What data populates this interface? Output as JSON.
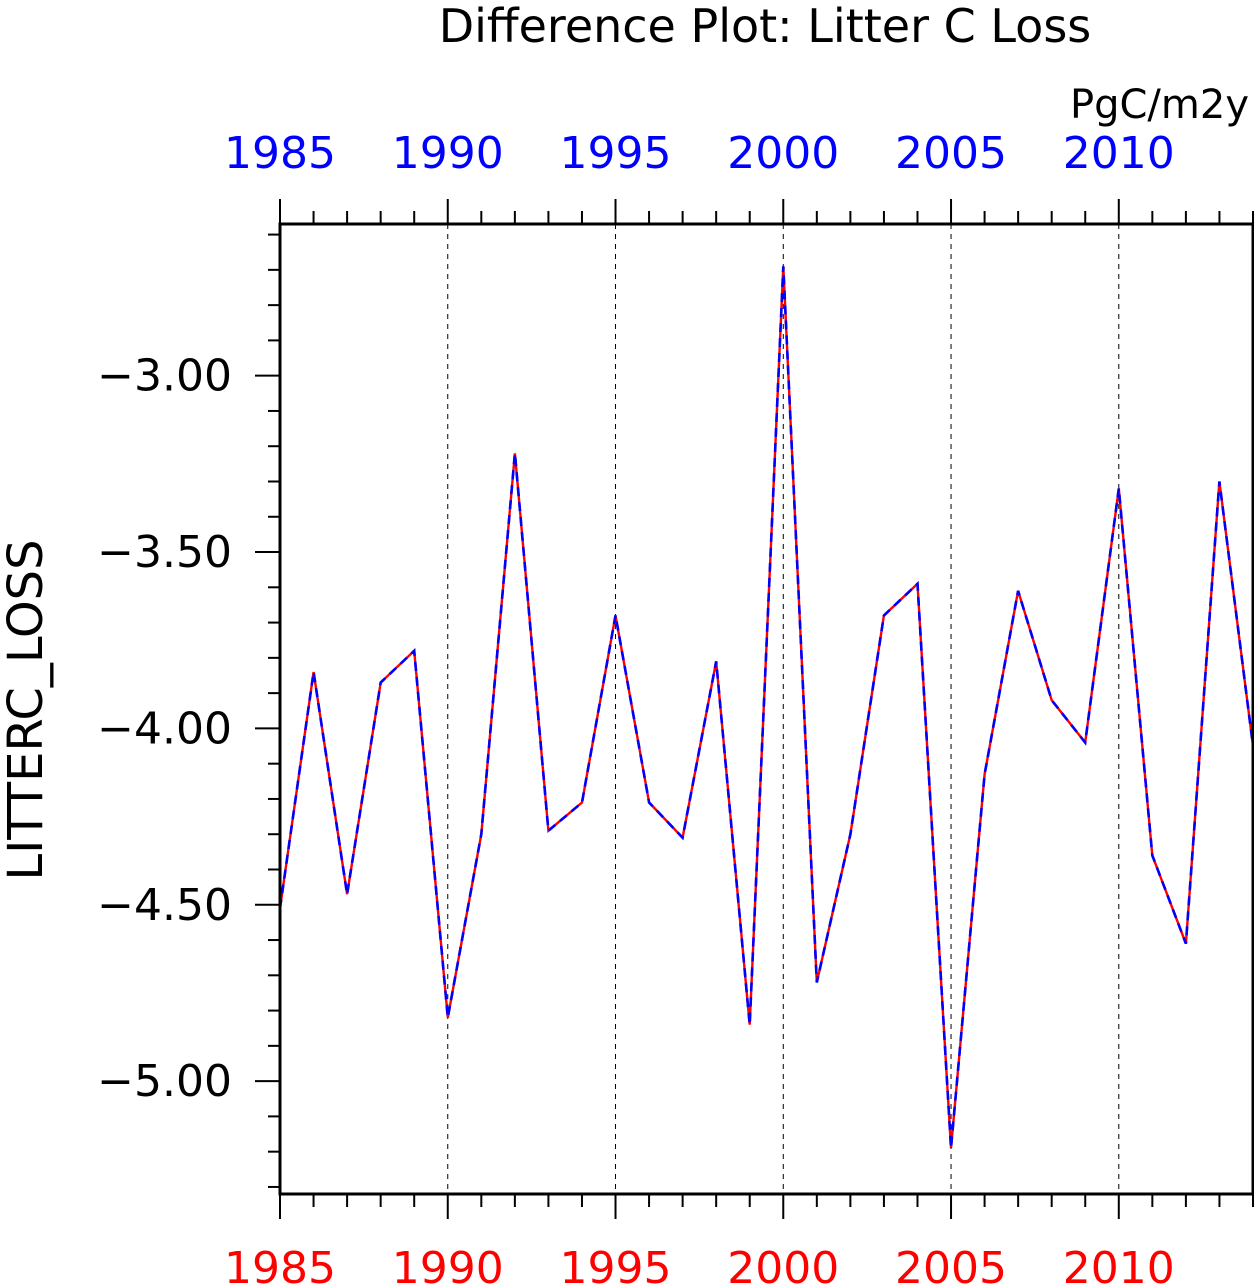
{
  "chart_data": {
    "type": "line",
    "title": "Difference Plot: Litter C Loss",
    "units": "PgC/m2y",
    "xlabel": "",
    "ylabel": "LITTERC_LOSS",
    "xlim": [
      1985,
      2014
    ],
    "ylim": [
      -5.32,
      -2.57
    ],
    "x_ticks": [
      1985,
      1990,
      1995,
      2000,
      2005,
      2010
    ],
    "y_ticks": [
      "-3.00",
      "-3.50",
      "-4.00",
      "-4.50",
      "-5.00"
    ],
    "grid": "vertical dashed at major x ticks",
    "x": [
      1985,
      1986,
      1987,
      1988,
      1989,
      1990,
      1991,
      1992,
      1993,
      1994,
      1995,
      1996,
      1997,
      1998,
      1999,
      2000,
      2001,
      2002,
      2003,
      2004,
      2005,
      2006,
      2007,
      2008,
      2009,
      2010,
      2011,
      2012,
      2013,
      2014
    ],
    "series": [
      {
        "color": "#ff0000",
        "style": "solid",
        "values": [
          -4.51,
          -3.84,
          -4.47,
          -3.87,
          -3.78,
          -4.82,
          -4.3,
          -3.22,
          -4.29,
          -4.21,
          -3.68,
          -4.21,
          -4.31,
          -3.81,
          -4.84,
          -2.69,
          -4.72,
          -4.3,
          -3.68,
          -3.59,
          -5.19,
          -4.13,
          -3.61,
          -3.92,
          -4.04,
          -3.32,
          -4.36,
          -4.61,
          -3.3,
          -4.05
        ]
      },
      {
        "color": "#0000ff",
        "style": "dashed",
        "values": [
          -4.51,
          -3.84,
          -4.47,
          -3.87,
          -3.78,
          -4.82,
          -4.3,
          -3.22,
          -4.29,
          -4.21,
          -3.68,
          -4.21,
          -4.31,
          -3.81,
          -4.84,
          -2.69,
          -4.72,
          -4.3,
          -3.68,
          -3.59,
          -5.19,
          -4.13,
          -3.61,
          -3.92,
          -4.04,
          -3.32,
          -4.36,
          -4.61,
          -3.3,
          -4.05
        ]
      }
    ],
    "colors": {
      "bottom_axis_labels": "#ff0000",
      "top_axis_labels": "#0000ff",
      "frame": "#000000"
    }
  }
}
